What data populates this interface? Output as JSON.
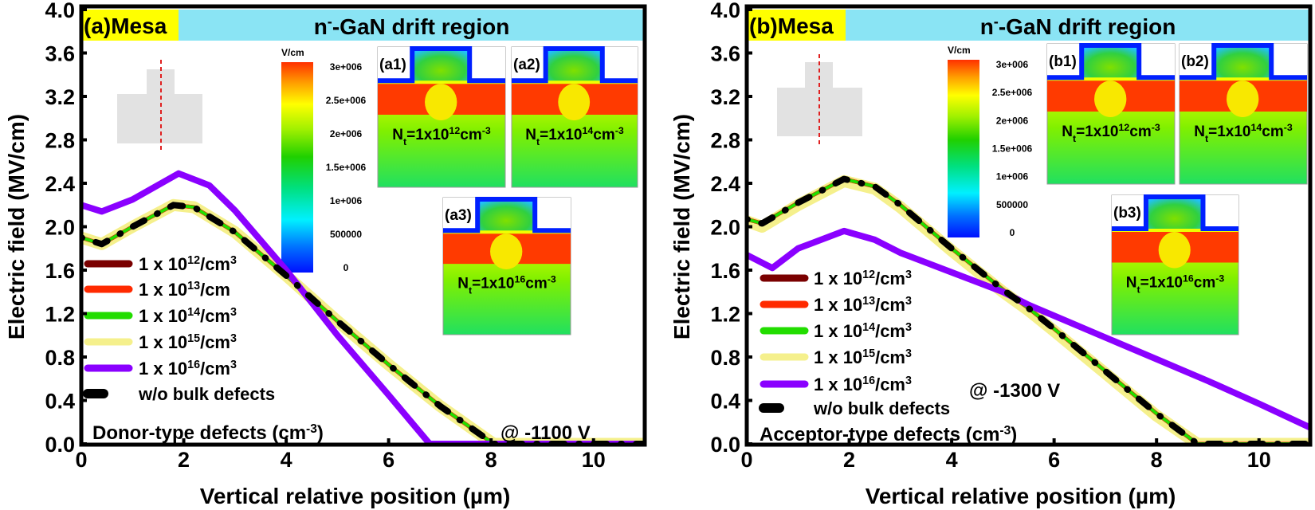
{
  "chart_data": [
    {
      "type": "line",
      "panel_label": "(a)",
      "header_left": "Mesa",
      "header_right": {
        "pre": "n",
        "sup": "-",
        "post": "-GaN drift region"
      },
      "xlabel": "Vertical relative position (µm)",
      "ylabel": "Electric field (MV/cm)",
      "xlim": [
        0,
        11
      ],
      "ylim": [
        0,
        4.0
      ],
      "xticks": [
        0,
        2,
        4,
        6,
        8,
        10
      ],
      "yticks": [
        "0.0",
        "0.4",
        "0.8",
        "1.2",
        "1.6",
        "2.0",
        "2.4",
        "2.8",
        "3.2",
        "3.6",
        "4.0"
      ],
      "legend_position": "left",
      "annotation_type": {
        "text": "Donor-type defects (cm",
        "sup": "-3",
        "close": ")"
      },
      "annotation_bias": "@ -1100 V",
      "colorbar": {
        "unit": "V/cm",
        "ticks": [
          "3e+006",
          "2.5e+006",
          "2e+006",
          "1.5e+006",
          "1e+006",
          "500000",
          "0"
        ]
      },
      "insets": [
        {
          "label": "(a1)",
          "nt": {
            "exp": "12"
          }
        },
        {
          "label": "(a2)",
          "nt": {
            "exp": "14"
          }
        },
        {
          "label": "(a3)",
          "nt": {
            "exp": "16"
          }
        }
      ],
      "series": [
        {
          "name": {
            "base": "1 x 10",
            "exp": "15",
            "unit": "/cm",
            "uexp": "3"
          },
          "color": "#f5f08c",
          "legend_index": 3,
          "x": [
            0,
            0.4,
            1,
            1.8,
            2.2,
            3,
            4,
            5,
            6,
            7,
            8.05,
            11
          ],
          "y": [
            1.9,
            1.84,
            2.0,
            2.2,
            2.18,
            1.95,
            1.55,
            1.13,
            0.73,
            0.35,
            0,
            0
          ]
        },
        {
          "name": {
            "base": "1 x 10",
            "exp": "12",
            "unit": "/cm",
            "uexp": "3"
          },
          "color": "#7a0000",
          "legend_index": 0,
          "x": [
            0,
            0.4,
            1,
            1.8,
            2.2,
            3,
            4,
            5,
            6,
            7,
            8.05,
            11
          ],
          "y": [
            1.9,
            1.84,
            2.0,
            2.2,
            2.18,
            1.95,
            1.55,
            1.13,
            0.73,
            0.35,
            0,
            0
          ]
        },
        {
          "name": {
            "base": "1 x 10",
            "exp": "13",
            "unit": "/cm",
            "uexp": ""
          },
          "color": "#ff2a00",
          "legend_index": 1,
          "x": [
            0,
            0.4,
            1,
            1.8,
            2.2,
            3,
            4,
            5,
            6,
            7,
            8.05,
            11
          ],
          "y": [
            1.9,
            1.84,
            2.0,
            2.2,
            2.18,
            1.95,
            1.55,
            1.13,
            0.73,
            0.35,
            0,
            0
          ]
        },
        {
          "name": {
            "base": "1 x 10",
            "exp": "14",
            "unit": "/cm",
            "uexp": "3"
          },
          "color": "#22dd00",
          "legend_index": 2,
          "x": [
            0,
            0.4,
            1,
            1.8,
            2.2,
            3,
            4,
            5,
            6,
            7,
            8.05,
            11
          ],
          "y": [
            1.9,
            1.84,
            2.0,
            2.2,
            2.18,
            1.95,
            1.55,
            1.13,
            0.73,
            0.35,
            0,
            0
          ]
        },
        {
          "name": {
            "base": "1 x 10",
            "exp": "16",
            "unit": "/cm",
            "uexp": "3"
          },
          "color": "#8a00ff",
          "legend_index": 4,
          "x": [
            0,
            0.4,
            1,
            1.9,
            2.5,
            3,
            4,
            5,
            6,
            6.8,
            11
          ],
          "y": [
            2.2,
            2.14,
            2.25,
            2.49,
            2.38,
            2.15,
            1.6,
            1.0,
            0.45,
            0,
            0
          ]
        },
        {
          "name": {
            "base": "w/o bulk defects",
            "exp": "",
            "unit": "",
            "uexp": ""
          },
          "color": "#000000",
          "dashed": true,
          "legend_index": 5,
          "x": [
            0,
            0.4,
            1,
            1.8,
            2.2,
            3,
            4,
            5,
            6,
            7,
            8.05,
            11
          ],
          "y": [
            1.9,
            1.84,
            2.0,
            2.2,
            2.18,
            1.95,
            1.55,
            1.13,
            0.73,
            0.35,
            0,
            0
          ]
        }
      ]
    },
    {
      "type": "line",
      "panel_label": "(b)",
      "header_left": "Mesa",
      "header_right": {
        "pre": "n",
        "sup": "-",
        "post": "-GaN drift region"
      },
      "xlabel": "Vertical relative position (µm)",
      "ylabel": "Electric field (MV/cm)",
      "xlim": [
        0,
        11
      ],
      "ylim": [
        0,
        4.0
      ],
      "xticks": [
        0,
        2,
        4,
        6,
        8,
        10
      ],
      "yticks": [
        "0.0",
        "0.4",
        "0.8",
        "1.2",
        "1.6",
        "2.0",
        "2.4",
        "2.8",
        "3.2",
        "3.6",
        "4.0"
      ],
      "legend_position": "left",
      "annotation_type": {
        "text": "Acceptor-type defects (cm",
        "sup": "-3",
        "close": ")"
      },
      "annotation_bias": "@ -1300 V",
      "colorbar": {
        "unit": "V/cm",
        "ticks": [
          "3e+006",
          "2.5e+006",
          "2e+006",
          "1.5e+006",
          "1e+006",
          "500000",
          "0"
        ]
      },
      "insets": [
        {
          "label": "(b1)",
          "nt": {
            "exp": "12"
          }
        },
        {
          "label": "(b2)",
          "nt": {
            "exp": "14"
          }
        },
        {
          "label": "(b3)",
          "nt": {
            "exp": "16"
          }
        }
      ],
      "series": [
        {
          "name": {
            "base": "1 x 10",
            "exp": "15",
            "unit": "/cm",
            "uexp": "3"
          },
          "color": "#f5f08c",
          "legend_index": 3,
          "x": [
            0,
            0.3,
            1,
            1.9,
            2.5,
            3,
            4,
            5,
            5.5,
            6,
            7,
            8,
            8.8,
            11
          ],
          "y": [
            2.05,
            2.0,
            2.2,
            2.42,
            2.35,
            2.18,
            1.78,
            1.4,
            1.23,
            1.04,
            0.65,
            0.26,
            0,
            0
          ]
        },
        {
          "name": {
            "base": "1 x 10",
            "exp": "12",
            "unit": "/cm",
            "uexp": "3"
          },
          "color": "#7a0000",
          "legend_index": 0,
          "x": [
            0,
            0.3,
            1,
            1.9,
            2.5,
            3,
            4,
            5,
            5.5,
            6,
            7,
            8,
            8.8,
            11
          ],
          "y": [
            2.07,
            2.03,
            2.22,
            2.44,
            2.37,
            2.2,
            1.8,
            1.42,
            1.25,
            1.06,
            0.67,
            0.28,
            0,
            0
          ]
        },
        {
          "name": {
            "base": "1 x 10",
            "exp": "13",
            "unit": "/cm",
            "uexp": "3"
          },
          "color": "#ff2a00",
          "legend_index": 1,
          "x": [
            0,
            0.3,
            1,
            1.9,
            2.5,
            3,
            4,
            5,
            5.5,
            6,
            7,
            8,
            8.8,
            11
          ],
          "y": [
            2.07,
            2.03,
            2.22,
            2.44,
            2.37,
            2.2,
            1.8,
            1.42,
            1.25,
            1.06,
            0.67,
            0.28,
            0,
            0
          ]
        },
        {
          "name": {
            "base": "1 x 10",
            "exp": "14",
            "unit": "/cm",
            "uexp": "3"
          },
          "color": "#22dd00",
          "legend_index": 2,
          "x": [
            0,
            0.3,
            1,
            1.9,
            2.5,
            3,
            4,
            5,
            5.5,
            6,
            7,
            8,
            8.8,
            11
          ],
          "y": [
            2.07,
            2.03,
            2.22,
            2.44,
            2.37,
            2.2,
            1.8,
            1.42,
            1.25,
            1.06,
            0.67,
            0.28,
            0,
            0
          ]
        },
        {
          "name": {
            "base": "1 x 10",
            "exp": "16",
            "unit": "/cm",
            "uexp": "3"
          },
          "color": "#8a00ff",
          "legend_index": 4,
          "x": [
            0,
            0.5,
            1,
            1.9,
            2.5,
            3,
            4,
            5,
            5.5,
            6,
            7,
            8,
            9,
            10,
            11
          ],
          "y": [
            1.74,
            1.62,
            1.8,
            1.96,
            1.88,
            1.76,
            1.58,
            1.4,
            1.28,
            1.18,
            0.98,
            0.78,
            0.58,
            0.37,
            0.15
          ]
        },
        {
          "name": {
            "base": "w/o bulk defects",
            "exp": "",
            "unit": "",
            "uexp": ""
          },
          "color": "#000000",
          "dashed": true,
          "legend_index": 5,
          "x": [
            0,
            0.3,
            1,
            1.9,
            2.5,
            3,
            4,
            5,
            5.5,
            6,
            7,
            8,
            8.8,
            11
          ],
          "y": [
            2.07,
            2.03,
            2.22,
            2.44,
            2.37,
            2.2,
            1.8,
            1.42,
            1.25,
            1.06,
            0.67,
            0.28,
            0,
            0
          ]
        }
      ]
    }
  ],
  "nt_text": {
    "n": "N",
    "sub": "t",
    "mid": "=1x10",
    "unit": "cm",
    "uexp": "-3"
  },
  "colors": {
    "mesa_bar": "#ffff00",
    "drift_bar": "#8ae4f4",
    "mesa_schematic": "#e2e2e2",
    "cut_line": "#e02020"
  }
}
